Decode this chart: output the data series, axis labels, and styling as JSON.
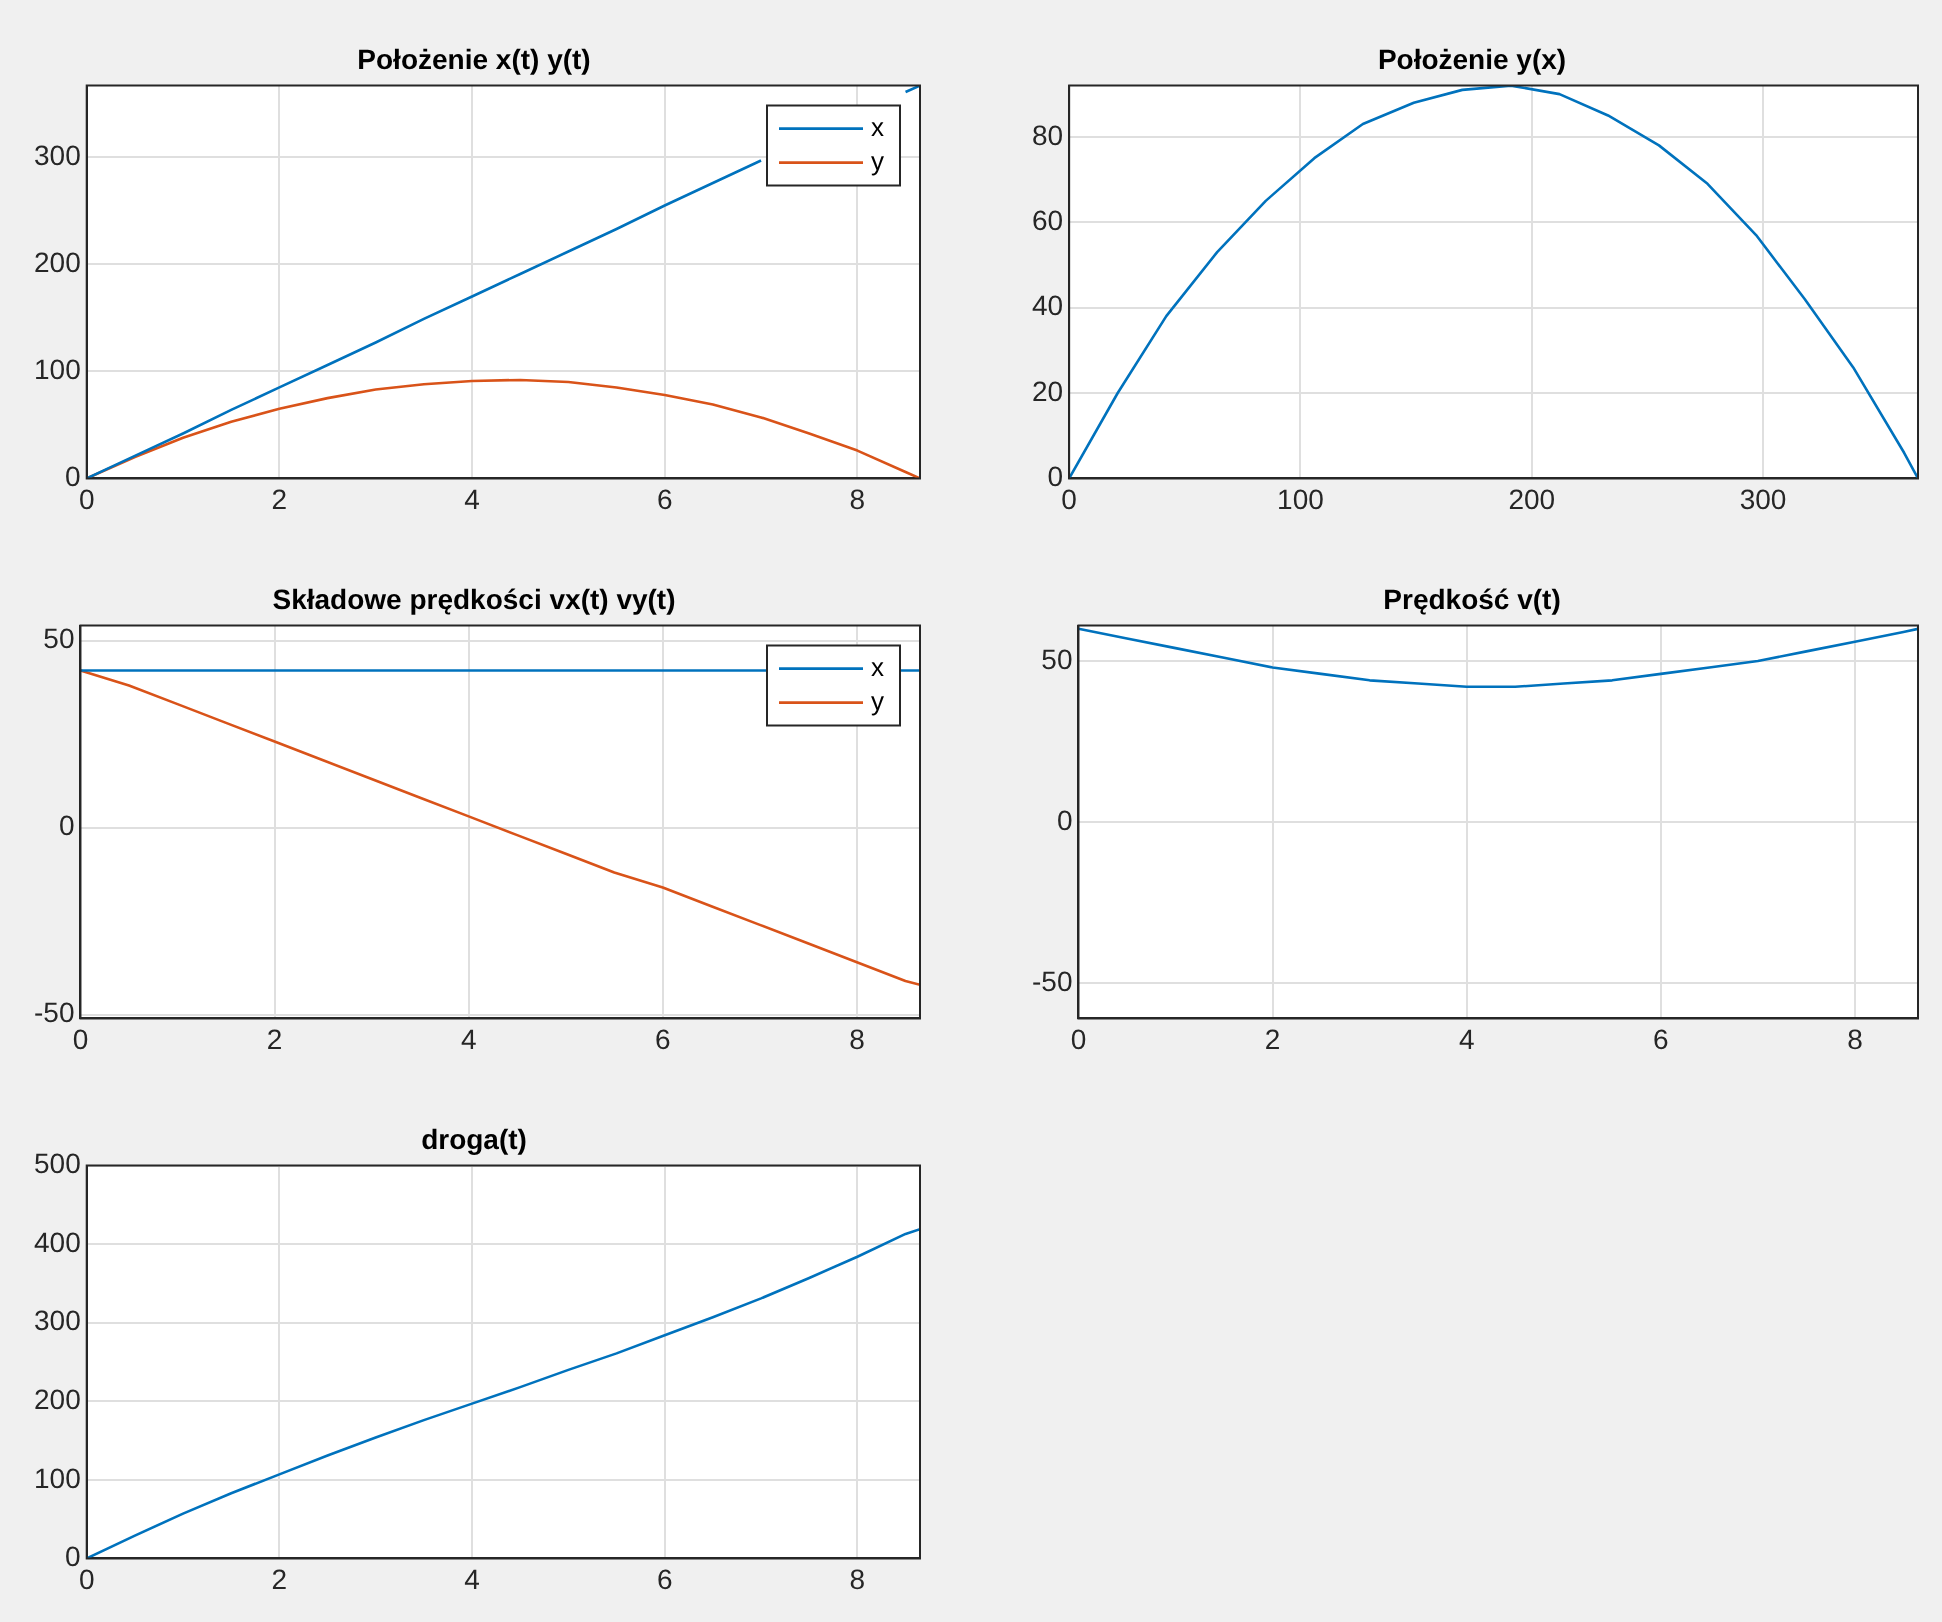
{
  "chart_data": [
    {
      "type": "line",
      "title": "Położenie x(t) y(t)",
      "x": [
        0,
        0.5,
        1,
        1.5,
        2,
        2.5,
        3,
        3.5,
        4,
        4.5,
        5,
        5.5,
        6,
        6.5,
        7,
        7.5,
        8,
        8.5,
        8.65
      ],
      "series": [
        {
          "name": "x",
          "color": "#0072bd",
          "values": [
            0,
            21,
            42,
            64,
            85,
            106,
            127,
            149,
            170,
            191,
            212,
            233,
            255,
            276,
            297,
            null,
            null,
            361,
            367
          ]
        },
        {
          "name": "y",
          "color": "#d95319",
          "values": [
            0,
            20,
            38,
            53,
            65,
            75,
            83,
            88,
            91,
            92,
            90,
            85,
            78,
            69,
            57,
            42,
            26,
            6,
            0
          ]
        }
      ],
      "xlim": [
        0,
        8.65
      ],
      "xticks": [
        0,
        2,
        4,
        6,
        8
      ],
      "ylim": [
        0,
        367
      ],
      "yticks": [
        0,
        100,
        200,
        300
      ],
      "grid": true,
      "legend": "top right"
    },
    {
      "type": "line",
      "title": "Położenie y(x)",
      "x": [
        0,
        21,
        42,
        64,
        85,
        106,
        127,
        149,
        170,
        191,
        212,
        233,
        255,
        276,
        297,
        318,
        339,
        361,
        367
      ],
      "series": [
        {
          "color": "#0072bd",
          "values": [
            0,
            20,
            38,
            53,
            65,
            75,
            83,
            88,
            91,
            92,
            90,
            85,
            78,
            69,
            57,
            42,
            26,
            6,
            0
          ]
        }
      ],
      "xlim": [
        0,
        367
      ],
      "xticks": [
        0,
        100,
        200,
        300
      ],
      "ylim": [
        0,
        92
      ],
      "yticks": [
        0,
        20,
        40,
        60,
        80
      ],
      "grid": true
    },
    {
      "type": "line",
      "title": "Składowe prędkości vx(t) vy(t)",
      "x": [
        0,
        0.5,
        1,
        1.5,
        2,
        2.5,
        3,
        3.5,
        4,
        4.5,
        5,
        5.5,
        6,
        6.5,
        7,
        7.5,
        8,
        8.5,
        8.65
      ],
      "series": [
        {
          "name": "x",
          "color": "#0072bd",
          "x": [
            0,
            8.65
          ],
          "values": [
            42,
            42
          ]
        },
        {
          "name": "y",
          "color": "#d95319",
          "values": [
            42,
            38,
            33,
            28,
            23,
            18,
            13,
            8,
            3,
            -2,
            -7,
            -12,
            -16,
            -21,
            -26,
            -31,
            -36,
            -41,
            -42
          ]
        }
      ],
      "xlim": [
        0,
        8.65
      ],
      "xticks": [
        0,
        2,
        4,
        6,
        8
      ],
      "ylim": [
        -51,
        54
      ],
      "yticks": [
        -50,
        0,
        50
      ],
      "grid": true,
      "legend": "top right"
    },
    {
      "type": "line",
      "title": "Prędkość v(t)",
      "x": [
        0,
        0.5,
        1,
        1.5,
        2,
        2.5,
        3,
        3.5,
        4,
        4.5,
        5,
        5.5,
        6,
        6.5,
        7,
        7.5,
        8,
        8.5,
        8.65
      ],
      "series": [
        {
          "color": "#0072bd",
          "values": [
            60,
            57,
            54,
            51,
            48,
            46,
            44,
            43,
            42,
            42,
            43,
            44,
            46,
            48,
            50,
            53,
            56,
            59,
            60
          ]
        }
      ],
      "xlim": [
        0,
        8.65
      ],
      "xticks": [
        0,
        2,
        4,
        6,
        8
      ],
      "ylim": [
        -61,
        61
      ],
      "yticks": [
        -50,
        0,
        50
      ],
      "grid": true
    },
    {
      "type": "line",
      "title": "droga(t)",
      "x": [
        0,
        0.5,
        1,
        1.5,
        2,
        2.5,
        3,
        3.5,
        4,
        4.5,
        5,
        5.5,
        6,
        6.5,
        7,
        7.5,
        8,
        8.5,
        8.65
      ],
      "series": [
        {
          "color": "#0072bd",
          "values": [
            0,
            29,
            57,
            83,
            107,
            131,
            154,
            176,
            197,
            218,
            240,
            261,
            284,
            307,
            331,
            357,
            384,
            413,
            419
          ]
        }
      ],
      "xlim": [
        0,
        8.65
      ],
      "xticks": [
        0,
        2,
        4,
        6,
        8
      ],
      "ylim": [
        0,
        500
      ],
      "yticks": [
        0,
        100,
        200,
        300,
        400,
        500
      ],
      "grid": true
    }
  ]
}
